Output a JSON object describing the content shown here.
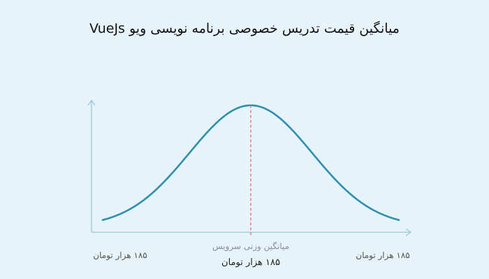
{
  "colors": {
    "background": "#e6f3f8",
    "axis": "#9cc7d7",
    "curve": "#2e8fb0",
    "mean_line": "#e05a6b",
    "title": "#111111"
  },
  "chart_data": {
    "type": "line",
    "title": "میانگین قیمت تدریس خصوصی برنامه نویسی ویو VueJs",
    "shape": "bell-curve distribution",
    "left_label": "۱۸۵ هزار تومان",
    "right_label": "۱۸۵ هزار تومان",
    "mean_caption": "میانگین وزنی سرویس",
    "mean_value": "۱۸۵ هزار تومان",
    "grid": false,
    "legend": "none"
  }
}
